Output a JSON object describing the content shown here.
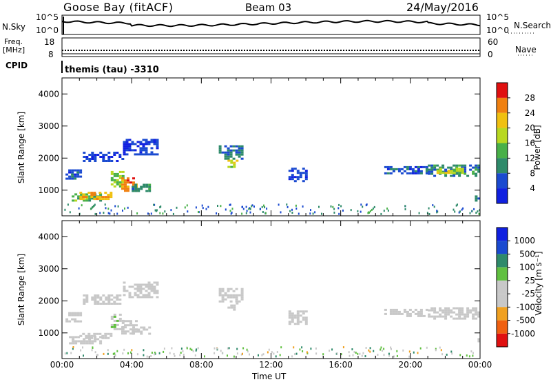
{
  "header": {
    "station": "Goose Bay (fitACF)",
    "beam": "Beam 03",
    "date": "24/May/2016"
  },
  "noise_panel": {
    "left_label": "N.Sky",
    "right_label": "N.Search",
    "ticks_left": [
      "10^5",
      "10^0"
    ],
    "ticks_right": [
      "10^5",
      "10^0"
    ]
  },
  "freq_panel": {
    "left_label_line1": "Freq.",
    "left_label_line2": "[MHz]",
    "right_label": "Nave",
    "ticks_left": [
      "18",
      "8"
    ],
    "ticks_right": [
      "60",
      "0"
    ]
  },
  "cpid": {
    "label": "CPID",
    "value": "themis (tau) -3310"
  },
  "colors": {
    "power": [
      "#1020e0",
      "#1a4ad0",
      "#2e8a6a",
      "#48b048",
      "#b8d820",
      "#f0c010",
      "#f08010",
      "#e01010"
    ],
    "velocity": [
      "#e01010",
      "#f06010",
      "#f0a020",
      "#c8c8c8",
      "#c8c8c8",
      "#60c040",
      "#2e8a6a",
      "#1a4ad0",
      "#1020e0"
    ]
  },
  "chart_data": [
    {
      "type": "heatmap",
      "panel": "power",
      "ylabel": "Slant Range [km]",
      "yticks": [
        "1000",
        "2000",
        "3000",
        "4000"
      ],
      "ylim": [
        200,
        4500
      ],
      "xlim": [
        0,
        24
      ],
      "colorbar": {
        "label": "Power [dB]",
        "ticks": [
          "4",
          "8",
          "12",
          "16",
          "20",
          "24",
          "28"
        ],
        "range": [
          0,
          32
        ]
      },
      "patches": [
        {
          "t0": 0.2,
          "t1": 1.0,
          "r0": 1350,
          "r1": 1650,
          "value": 6
        },
        {
          "t0": 0.4,
          "t1": 2.2,
          "r0": 700,
          "r1": 900,
          "value": 14
        },
        {
          "t0": 1.0,
          "t1": 2.8,
          "r0": 750,
          "r1": 950,
          "value": 24
        },
        {
          "t0": 2.8,
          "t1": 3.5,
          "r0": 1100,
          "r1": 1600,
          "value": 16
        },
        {
          "t0": 3.4,
          "t1": 4.2,
          "r0": 1000,
          "r1": 1400,
          "value": 26
        },
        {
          "t0": 4.0,
          "t1": 5.0,
          "r0": 1000,
          "r1": 1200,
          "value": 10
        },
        {
          "t0": 1.2,
          "t1": 3.5,
          "r0": 1900,
          "r1": 2200,
          "value": 5
        },
        {
          "t0": 3.5,
          "t1": 5.5,
          "r0": 2100,
          "r1": 2600,
          "value": 5
        },
        {
          "t0": 9.0,
          "t1": 10.3,
          "r0": 2000,
          "r1": 2400,
          "value": 9
        },
        {
          "t0": 9.5,
          "t1": 10.0,
          "r0": 1700,
          "r1": 1950,
          "value": 18
        },
        {
          "t0": 13.0,
          "t1": 14.0,
          "r0": 1300,
          "r1": 1700,
          "value": 5
        },
        {
          "t0": 18.5,
          "t1": 21.0,
          "r0": 1550,
          "r1": 1750,
          "value": 6
        },
        {
          "t0": 21.0,
          "t1": 24.0,
          "r0": 1450,
          "r1": 1800,
          "value": 10
        },
        {
          "t0": 21.5,
          "t1": 23.0,
          "r0": 1550,
          "r1": 1700,
          "value": 18
        },
        {
          "t0": 23.7,
          "t1": 24.0,
          "r0": 700,
          "r1": 900,
          "value": 10
        }
      ]
    },
    {
      "type": "heatmap",
      "panel": "velocity",
      "ylabel": "Slant Range [km]",
      "xlabel": "Time UT",
      "xticks": [
        "00:00",
        "04:00",
        "08:00",
        "12:00",
        "16:00",
        "20:00",
        "00:00"
      ],
      "yticks": [
        "1000",
        "2000",
        "3000",
        "4000"
      ],
      "ylim": [
        200,
        4500
      ],
      "xlim": [
        0,
        24
      ],
      "colorbar": {
        "label": "Velocity [m s⁻¹]",
        "ticks": [
          "1000",
          "500",
          "100",
          "25",
          "-25",
          "-100",
          "-500",
          "-1000"
        ],
        "range": [
          -1250,
          1250
        ]
      },
      "patches": [
        {
          "t0": 0.2,
          "t1": 1.0,
          "r0": 1350,
          "r1": 1650,
          "value": 0
        },
        {
          "t0": 0.4,
          "t1": 2.2,
          "r0": 700,
          "r1": 900,
          "value": 0
        },
        {
          "t0": 1.0,
          "t1": 2.8,
          "r0": 850,
          "r1": 1000,
          "value": 80
        },
        {
          "t0": 2.8,
          "t1": 3.5,
          "r0": 1100,
          "r1": 1600,
          "value": 120
        },
        {
          "t0": 3.4,
          "t1": 4.2,
          "r0": 1000,
          "r1": 1400,
          "value": 80
        },
        {
          "t0": 4.0,
          "t1": 5.0,
          "r0": 1000,
          "r1": 1200,
          "value": -300
        },
        {
          "t0": 1.2,
          "t1": 3.5,
          "r0": 1900,
          "r1": 2200,
          "value": 0
        },
        {
          "t0": 3.5,
          "t1": 5.5,
          "r0": 2100,
          "r1": 2600,
          "value": 0
        },
        {
          "t0": 9.0,
          "t1": 10.3,
          "r0": 2000,
          "r1": 2400,
          "value": 0
        },
        {
          "t0": 9.5,
          "t1": 10.0,
          "r0": 1700,
          "r1": 1950,
          "value": -300
        },
        {
          "t0": 13.0,
          "t1": 14.0,
          "r0": 1300,
          "r1": 1700,
          "value": 0
        },
        {
          "t0": 18.5,
          "t1": 21.0,
          "r0": 1550,
          "r1": 1750,
          "value": 0
        },
        {
          "t0": 21.0,
          "t1": 24.0,
          "r0": 1450,
          "r1": 1800,
          "value": 0
        },
        {
          "t0": 23.7,
          "t1": 24.0,
          "r0": 700,
          "r1": 900,
          "value": 0
        }
      ]
    }
  ]
}
